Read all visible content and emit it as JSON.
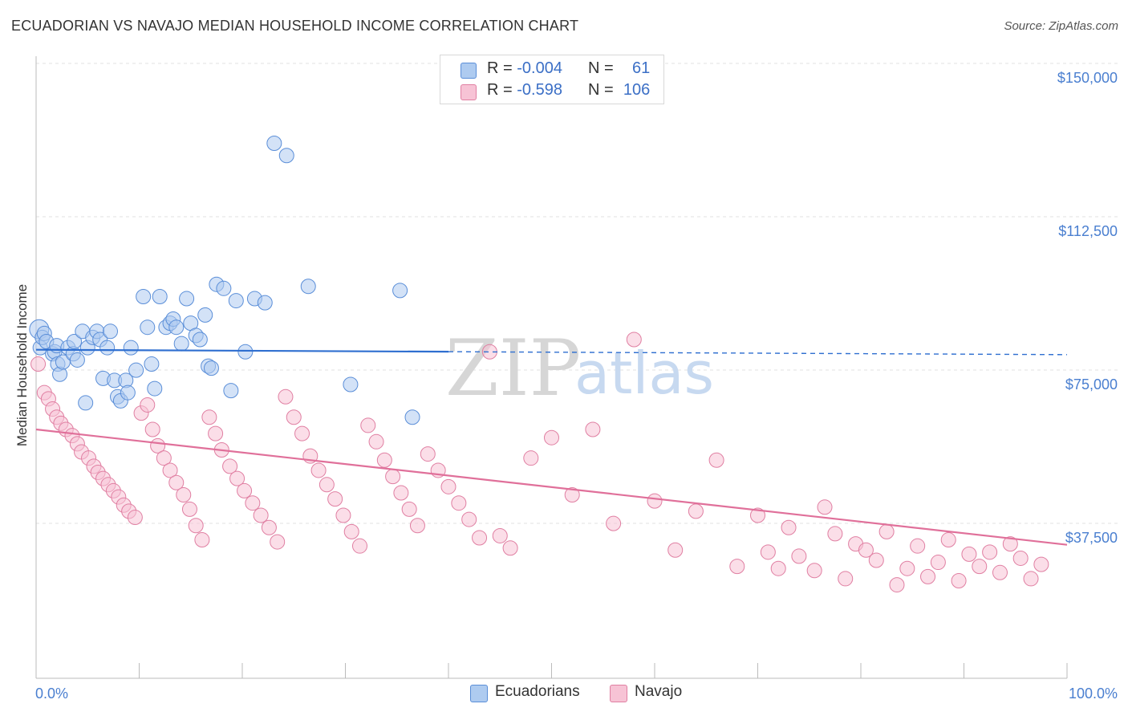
{
  "title": "ECUADORIAN VS NAVAJO MEDIAN HOUSEHOLD INCOME CORRELATION CHART",
  "source": "Source: ZipAtlas.com",
  "watermark": {
    "zip": "ZIP",
    "atlas": "atlas"
  },
  "legend": {
    "rows": [
      {
        "r_label": "R = ",
        "r_value": "-0.004",
        "n_label": "N = ",
        "n_value": "61",
        "color": "#aecbf0",
        "stroke": "#5a8ed8"
      },
      {
        "r_label": "R = ",
        "r_value": "-0.598",
        "n_label": "N = ",
        "n_value": "106",
        "color": "#f7c3d5",
        "stroke": "#e07fa2"
      }
    ]
  },
  "bottom_legend": [
    {
      "label": "Ecuadorians",
      "color": "#aecbf0",
      "stroke": "#5a8ed8"
    },
    {
      "label": "Navajo",
      "color": "#f7c3d5",
      "stroke": "#e07fa2"
    }
  ],
  "chart_data": {
    "type": "scatter",
    "title": "ECUADORIAN VS NAVAJO MEDIAN HOUSEHOLD INCOME CORRELATION CHART",
    "xlabel": "",
    "ylabel": "Median Household Income",
    "x_ticks": [
      "0.0%",
      "100.0%"
    ],
    "y_ticks": [
      {
        "value": 37500,
        "label": "$37,500"
      },
      {
        "value": 75000,
        "label": "$75,000"
      },
      {
        "value": 112500,
        "label": "$112,500"
      },
      {
        "value": 150000,
        "label": "$150,000"
      }
    ],
    "xlim": [
      0,
      100
    ],
    "ylim": [
      0,
      155000
    ],
    "grid": "horizontal dashed",
    "series": [
      {
        "name": "Ecuadorians",
        "color": "#aecbf0",
        "stroke": "#5a8ed8",
        "trend": {
          "x0": 0,
          "y0": 83500,
          "x1": 100,
          "y1": 82300,
          "solid_until": 40,
          "color": "#2f6fd0"
        },
        "points": [
          [
            0.3,
            88500
          ],
          [
            0.4,
            84000
          ],
          [
            0.6,
            86500
          ],
          [
            0.8,
            87500
          ],
          [
            1.0,
            85500
          ],
          [
            1.6,
            82500
          ],
          [
            1.8,
            83000
          ],
          [
            2.0,
            84500
          ],
          [
            2.1,
            80000
          ],
          [
            2.3,
            77500
          ],
          [
            2.6,
            80500
          ],
          [
            3.1,
            84000
          ],
          [
            3.6,
            82500
          ],
          [
            3.7,
            85500
          ],
          [
            4.0,
            81000
          ],
          [
            4.5,
            88000
          ],
          [
            4.8,
            70500
          ],
          [
            5.0,
            84000
          ],
          [
            5.5,
            86500
          ],
          [
            5.9,
            88000
          ],
          [
            6.2,
            86000
          ],
          [
            6.5,
            76500
          ],
          [
            6.9,
            84000
          ],
          [
            7.2,
            88000
          ],
          [
            7.6,
            76000
          ],
          [
            7.9,
            72000
          ],
          [
            8.2,
            71000
          ],
          [
            8.7,
            76000
          ],
          [
            8.9,
            73000
          ],
          [
            9.2,
            84000
          ],
          [
            9.7,
            78500
          ],
          [
            10.4,
            96500
          ],
          [
            10.8,
            89000
          ],
          [
            11.2,
            80000
          ],
          [
            11.5,
            74000
          ],
          [
            12.0,
            96500
          ],
          [
            12.6,
            89000
          ],
          [
            13.0,
            90000
          ],
          [
            13.3,
            91000
          ],
          [
            13.6,
            89000
          ],
          [
            14.1,
            85000
          ],
          [
            14.6,
            96000
          ],
          [
            15.0,
            90000
          ],
          [
            15.5,
            87000
          ],
          [
            15.9,
            86000
          ],
          [
            16.4,
            92000
          ],
          [
            16.7,
            79500
          ],
          [
            17.0,
            79000
          ],
          [
            17.5,
            99500
          ],
          [
            18.2,
            98500
          ],
          [
            18.9,
            73500
          ],
          [
            19.4,
            95500
          ],
          [
            20.3,
            83000
          ],
          [
            21.2,
            96000
          ],
          [
            22.2,
            95000
          ],
          [
            23.1,
            134000
          ],
          [
            24.3,
            131000
          ],
          [
            26.4,
            99000
          ],
          [
            30.5,
            75000
          ],
          [
            35.3,
            98000
          ],
          [
            36.5,
            67000
          ]
        ]
      },
      {
        "name": "Navajo",
        "color": "#f7c3d5",
        "stroke": "#e07fa2",
        "trend": {
          "x0": 0,
          "y0": 64000,
          "x1": 100,
          "y1": 35800,
          "solid_until": 100,
          "color": "#e0709a"
        },
        "points": [
          [
            0.2,
            80000
          ],
          [
            0.8,
            73000
          ],
          [
            1.2,
            71500
          ],
          [
            1.6,
            69000
          ],
          [
            2.0,
            67000
          ],
          [
            2.4,
            65500
          ],
          [
            2.9,
            64000
          ],
          [
            3.5,
            62500
          ],
          [
            4.0,
            60500
          ],
          [
            4.4,
            58500
          ],
          [
            5.1,
            57000
          ],
          [
            5.6,
            55000
          ],
          [
            6.0,
            53500
          ],
          [
            6.5,
            52000
          ],
          [
            7.0,
            50500
          ],
          [
            7.5,
            49000
          ],
          [
            8.0,
            47500
          ],
          [
            8.5,
            45500
          ],
          [
            9.0,
            44000
          ],
          [
            9.6,
            42500
          ],
          [
            10.2,
            68000
          ],
          [
            10.8,
            70000
          ],
          [
            11.3,
            64000
          ],
          [
            11.8,
            60000
          ],
          [
            12.4,
            57000
          ],
          [
            13.0,
            54000
          ],
          [
            13.6,
            51000
          ],
          [
            14.3,
            48000
          ],
          [
            14.9,
            44500
          ],
          [
            15.5,
            40500
          ],
          [
            16.1,
            37000
          ],
          [
            16.8,
            67000
          ],
          [
            17.4,
            63000
          ],
          [
            18.0,
            59000
          ],
          [
            18.8,
            55000
          ],
          [
            19.5,
            52000
          ],
          [
            20.2,
            49000
          ],
          [
            21.0,
            46000
          ],
          [
            21.8,
            43000
          ],
          [
            22.6,
            40000
          ],
          [
            23.4,
            36500
          ],
          [
            24.2,
            72000
          ],
          [
            25.0,
            67000
          ],
          [
            25.8,
            63000
          ],
          [
            26.6,
            57500
          ],
          [
            27.4,
            54000
          ],
          [
            28.2,
            50500
          ],
          [
            29.0,
            47000
          ],
          [
            29.8,
            43000
          ],
          [
            30.6,
            39000
          ],
          [
            31.4,
            35500
          ],
          [
            32.2,
            65000
          ],
          [
            33.0,
            61000
          ],
          [
            33.8,
            56500
          ],
          [
            34.6,
            52500
          ],
          [
            35.4,
            48500
          ],
          [
            36.2,
            44500
          ],
          [
            37.0,
            40500
          ],
          [
            38.0,
            58000
          ],
          [
            39.0,
            54000
          ],
          [
            40.0,
            50000
          ],
          [
            41.0,
            46000
          ],
          [
            42.0,
            42000
          ],
          [
            43.0,
            37500
          ],
          [
            44.0,
            83000
          ],
          [
            45.0,
            38000
          ],
          [
            46.0,
            35000
          ],
          [
            48.0,
            57000
          ],
          [
            50.0,
            62000
          ],
          [
            52.0,
            48000
          ],
          [
            54.0,
            64000
          ],
          [
            56.0,
            41000
          ],
          [
            58.0,
            86000
          ],
          [
            60.0,
            46500
          ],
          [
            62.0,
            34500
          ],
          [
            64.0,
            44000
          ],
          [
            66.0,
            56500
          ],
          [
            68.0,
            30500
          ],
          [
            70.0,
            43000
          ],
          [
            71.0,
            34000
          ],
          [
            72.0,
            30000
          ],
          [
            73.0,
            40000
          ],
          [
            74.0,
            33000
          ],
          [
            75.5,
            29500
          ],
          [
            76.5,
            45000
          ],
          [
            77.5,
            38500
          ],
          [
            78.5,
            27500
          ],
          [
            79.5,
            36000
          ],
          [
            80.5,
            34500
          ],
          [
            81.5,
            32000
          ],
          [
            82.5,
            39000
          ],
          [
            83.5,
            26000
          ],
          [
            84.5,
            30000
          ],
          [
            85.5,
            35500
          ],
          [
            86.5,
            28000
          ],
          [
            87.5,
            31500
          ],
          [
            88.5,
            37000
          ],
          [
            89.5,
            27000
          ],
          [
            90.5,
            33500
          ],
          [
            91.5,
            30500
          ],
          [
            92.5,
            34000
          ],
          [
            93.5,
            29000
          ],
          [
            94.5,
            36000
          ],
          [
            95.5,
            32500
          ],
          [
            96.5,
            27500
          ],
          [
            97.5,
            31000
          ]
        ]
      }
    ]
  }
}
